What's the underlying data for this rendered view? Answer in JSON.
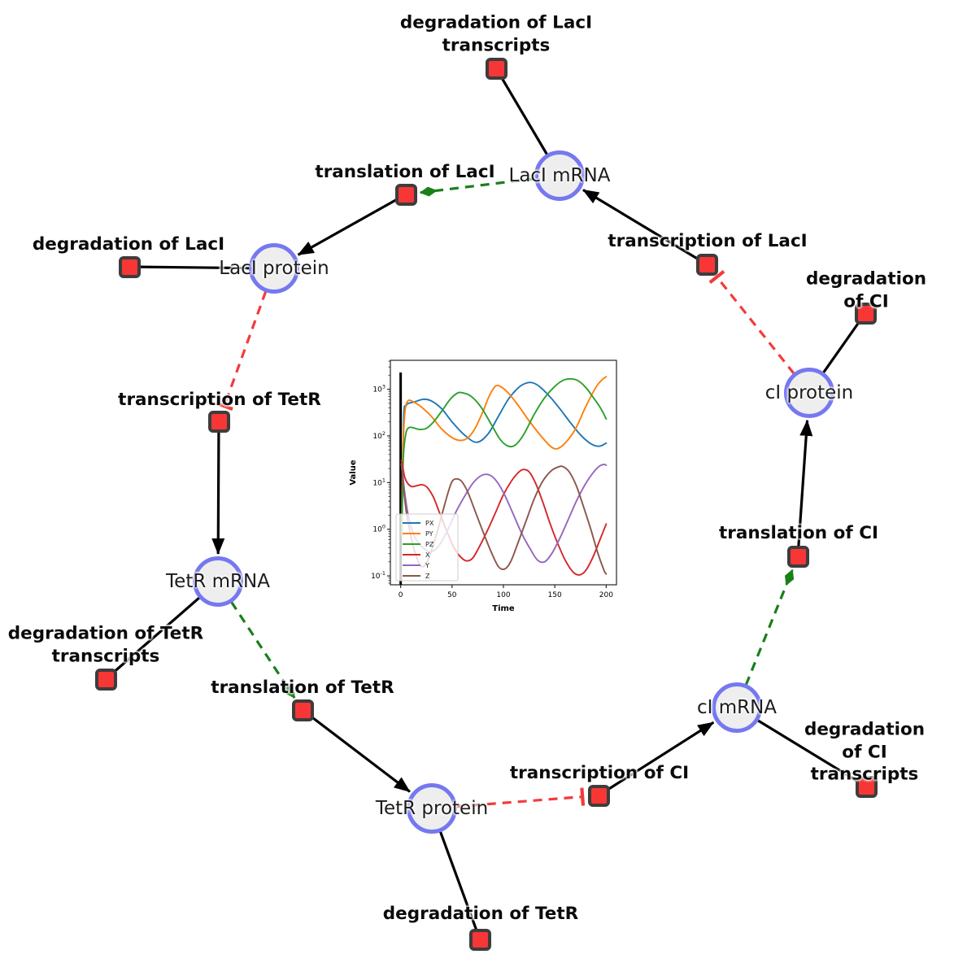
{
  "diagram": {
    "species": [
      {
        "id": "laci-mrna",
        "label": "LacI mRNA"
      },
      {
        "id": "laci-protein",
        "label": "LacI protein"
      },
      {
        "id": "tetr-mrna",
        "label": "TetR mRNA"
      },
      {
        "id": "tetr-protein",
        "label": "TetR protein"
      },
      {
        "id": "ci-mrna",
        "label": "cI mRNA"
      },
      {
        "id": "ci-protein",
        "label": "cI protein"
      }
    ],
    "reactions": [
      {
        "id": "deg-laci-transcripts",
        "label": "degradation of LacI\ntranscripts"
      },
      {
        "id": "translation-laci",
        "label": "translation of LacI"
      },
      {
        "id": "transcription-laci",
        "label": "transcription of LacI"
      },
      {
        "id": "degradation-laci",
        "label": "degradation of LacI"
      },
      {
        "id": "degradation-ci",
        "label": "degradation of CI"
      },
      {
        "id": "transcription-tetr",
        "label": "transcription of TetR"
      },
      {
        "id": "translation-ci",
        "label": "translation of CI"
      },
      {
        "id": "deg-tetr-transcripts",
        "label": "degradation of TetR\ntranscripts"
      },
      {
        "id": "translation-tetr",
        "label": "translation of TetR"
      },
      {
        "id": "deg-ci-transcripts",
        "label": "degradation of CI\ntranscripts"
      },
      {
        "id": "transcription-ci",
        "label": "transcription of CI"
      },
      {
        "id": "degradation-tetr",
        "label": "degradation of TetR"
      }
    ],
    "edges": [
      {
        "from": "LacI mRNA",
        "to": "degradation of LacI transcripts",
        "type": "reactant"
      },
      {
        "from": "transcription of LacI",
        "to": "LacI mRNA",
        "type": "product"
      },
      {
        "from": "LacI mRNA",
        "to": "translation of LacI",
        "type": "modifier"
      },
      {
        "from": "translation of LacI",
        "to": "LacI protein",
        "type": "product"
      },
      {
        "from": "LacI protein",
        "to": "degradation of LacI",
        "type": "reactant"
      },
      {
        "from": "LacI protein",
        "to": "transcription of TetR",
        "type": "inhibition"
      },
      {
        "from": "transcription of TetR",
        "to": "TetR mRNA",
        "type": "product"
      },
      {
        "from": "TetR mRNA",
        "to": "degradation of TetR transcripts",
        "type": "reactant"
      },
      {
        "from": "TetR mRNA",
        "to": "translation of TetR",
        "type": "modifier"
      },
      {
        "from": "translation of TetR",
        "to": "TetR protein",
        "type": "product"
      },
      {
        "from": "TetR protein",
        "to": "degradation of TetR",
        "type": "reactant"
      },
      {
        "from": "TetR protein",
        "to": "transcription of CI",
        "type": "inhibition"
      },
      {
        "from": "transcription of CI",
        "to": "cI mRNA",
        "type": "product"
      },
      {
        "from": "cI mRNA",
        "to": "degradation of CI transcripts",
        "type": "reactant"
      },
      {
        "from": "cI mRNA",
        "to": "translation of CI",
        "type": "modifier"
      },
      {
        "from": "translation of CI",
        "to": "cI protein",
        "type": "product"
      },
      {
        "from": "cI protein",
        "to": "degradation of CI",
        "type": "reactant"
      },
      {
        "from": "cI protein",
        "to": "transcription of LacI",
        "type": "inhibition"
      }
    ],
    "colors": {
      "species_fill": "#eeeeee",
      "species_border": "#7678f0",
      "reaction_fill": "#f83636",
      "reaction_border": "#3d3d3d",
      "product_edge": "#000000",
      "modifier_edge": "#1a7f1a",
      "inhibition_edge": "#f23b3b"
    }
  },
  "chart_data": {
    "type": "line",
    "title": "",
    "xlabel": "Time",
    "ylabel": "Value",
    "yscale": "log",
    "xlim": [
      -10,
      210
    ],
    "ylim_exp": [
      -1.19,
      3.62
    ],
    "x_ticks": [
      0,
      50,
      100,
      150,
      200
    ],
    "y_ticks_exp": [
      -1,
      0,
      1,
      2,
      3
    ],
    "legend_position": "lower left",
    "vline_x": 0,
    "series": [
      {
        "name": "PX",
        "color": "#1f77b4",
        "points": [
          [
            1.5,
            2
          ],
          [
            3,
            250
          ],
          [
            5,
            430
          ],
          [
            8,
            500
          ],
          [
            14,
            540
          ],
          [
            22,
            610
          ],
          [
            30,
            560
          ],
          [
            40,
            380
          ],
          [
            50,
            200
          ],
          [
            62,
            105
          ],
          [
            74,
            73
          ],
          [
            85,
            110
          ],
          [
            95,
            260
          ],
          [
            105,
            620
          ],
          [
            115,
            1100
          ],
          [
            122,
            1350
          ],
          [
            128,
            1380
          ],
          [
            135,
            1150
          ],
          [
            145,
            700
          ],
          [
            155,
            380
          ],
          [
            165,
            195
          ],
          [
            175,
            105
          ],
          [
            185,
            68
          ],
          [
            193,
            60
          ],
          [
            200,
            70
          ]
        ]
      },
      {
        "name": "PY",
        "color": "#ff7f0e",
        "points": [
          [
            1,
            0.9
          ],
          [
            2,
            30
          ],
          [
            4,
            300
          ],
          [
            7,
            560
          ],
          [
            12,
            540
          ],
          [
            20,
            420
          ],
          [
            30,
            260
          ],
          [
            40,
            140
          ],
          [
            50,
            92
          ],
          [
            58,
            80
          ],
          [
            65,
            90
          ],
          [
            72,
            140
          ],
          [
            80,
            330
          ],
          [
            86,
            700
          ],
          [
            92,
            1150
          ],
          [
            97,
            1150
          ],
          [
            105,
            820
          ],
          [
            115,
            430
          ],
          [
            125,
            210
          ],
          [
            135,
            110
          ],
          [
            145,
            62
          ],
          [
            152,
            53
          ],
          [
            160,
            70
          ],
          [
            170,
            140
          ],
          [
            180,
            420
          ],
          [
            190,
            1100
          ],
          [
            196,
            1600
          ],
          [
            200,
            1850
          ]
        ]
      },
      {
        "name": "PZ",
        "color": "#2ca02c",
        "points": [
          [
            1,
            0.7
          ],
          [
            2.5,
            30
          ],
          [
            5,
            110
          ],
          [
            8,
            150
          ],
          [
            12,
            150
          ],
          [
            18,
            138
          ],
          [
            25,
            145
          ],
          [
            32,
            200
          ],
          [
            40,
            340
          ],
          [
            48,
            600
          ],
          [
            55,
            820
          ],
          [
            60,
            840
          ],
          [
            68,
            720
          ],
          [
            78,
            420
          ],
          [
            88,
            180
          ],
          [
            97,
            83
          ],
          [
            105,
            60
          ],
          [
            112,
            65
          ],
          [
            120,
            110
          ],
          [
            130,
            290
          ],
          [
            140,
            650
          ],
          [
            150,
            1150
          ],
          [
            158,
            1550
          ],
          [
            165,
            1670
          ],
          [
            172,
            1550
          ],
          [
            180,
            1100
          ],
          [
            188,
            640
          ],
          [
            195,
            380
          ],
          [
            200,
            230
          ]
        ]
      },
      {
        "name": "X",
        "color": "#d62728",
        "points": [
          [
            0.7,
            30
          ],
          [
            2,
            22
          ],
          [
            4,
            13
          ],
          [
            7,
            9.5
          ],
          [
            11,
            8.2
          ],
          [
            16,
            8.6
          ],
          [
            21,
            9
          ],
          [
            26,
            7.8
          ],
          [
            32,
            4.8
          ],
          [
            38,
            2.2
          ],
          [
            45,
            0.9
          ],
          [
            52,
            0.4
          ],
          [
            58,
            0.26
          ],
          [
            64,
            0.21
          ],
          [
            70,
            0.24
          ],
          [
            76,
            0.4
          ],
          [
            84,
            0.9
          ],
          [
            92,
            2.2
          ],
          [
            100,
            5.5
          ],
          [
            108,
            11
          ],
          [
            114,
            16
          ],
          [
            119,
            19
          ],
          [
            125,
            17
          ],
          [
            131,
            10
          ],
          [
            138,
            4
          ],
          [
            145,
            1.4
          ],
          [
            152,
            0.55
          ],
          [
            160,
            0.22
          ],
          [
            168,
            0.12
          ],
          [
            174,
            0.105
          ],
          [
            180,
            0.13
          ],
          [
            187,
            0.25
          ],
          [
            194,
            0.6
          ],
          [
            200,
            1.3
          ]
        ]
      },
      {
        "name": "Y",
        "color": "#9467bd",
        "points": [
          [
            0.7,
            25
          ],
          [
            2,
            15
          ],
          [
            4,
            6
          ],
          [
            7,
            2.2
          ],
          [
            11,
            1
          ],
          [
            16,
            0.55
          ],
          [
            22,
            0.4
          ],
          [
            28,
            0.33
          ],
          [
            34,
            0.37
          ],
          [
            40,
            0.55
          ],
          [
            47,
            1.1
          ],
          [
            54,
            2.4
          ],
          [
            62,
            5
          ],
          [
            70,
            9.5
          ],
          [
            77,
            13.5
          ],
          [
            83,
            15
          ],
          [
            89,
            13.5
          ],
          [
            95,
            9.5
          ],
          [
            102,
            5
          ],
          [
            110,
            2
          ],
          [
            118,
            0.8
          ],
          [
            126,
            0.38
          ],
          [
            133,
            0.22
          ],
          [
            140,
            0.2
          ],
          [
            147,
            0.3
          ],
          [
            155,
            0.65
          ],
          [
            163,
            1.6
          ],
          [
            171,
            4
          ],
          [
            180,
            9.5
          ],
          [
            188,
            17
          ],
          [
            194,
            23
          ],
          [
            198,
            24.5
          ],
          [
            200,
            23.5
          ]
        ]
      },
      {
        "name": "Z",
        "color": "#8c564b",
        "points": [
          [
            0.7,
            25
          ],
          [
            1.5,
            17
          ],
          [
            3,
            7
          ],
          [
            6,
            2
          ],
          [
            10,
            0.7
          ],
          [
            14,
            0.32
          ],
          [
            19,
            0.17
          ],
          [
            24,
            0.17
          ],
          [
            29,
            0.3
          ],
          [
            35,
            0.8
          ],
          [
            41,
            2.4
          ],
          [
            46,
            6
          ],
          [
            50,
            10.5
          ],
          [
            54,
            12
          ],
          [
            59,
            10.8
          ],
          [
            65,
            6.5
          ],
          [
            72,
            2.6
          ],
          [
            80,
            0.9
          ],
          [
            88,
            0.33
          ],
          [
            95,
            0.16
          ],
          [
            101,
            0.14
          ],
          [
            107,
            0.2
          ],
          [
            114,
            0.5
          ],
          [
            122,
            1.5
          ],
          [
            130,
            4.5
          ],
          [
            138,
            10.5
          ],
          [
            146,
            17.5
          ],
          [
            153,
            21.5
          ],
          [
            158,
            22
          ],
          [
            164,
            17
          ],
          [
            171,
            8.5
          ],
          [
            178,
            3
          ],
          [
            185,
            1
          ],
          [
            192,
            0.3
          ],
          [
            198,
            0.13
          ],
          [
            200,
            0.11
          ]
        ]
      }
    ]
  }
}
